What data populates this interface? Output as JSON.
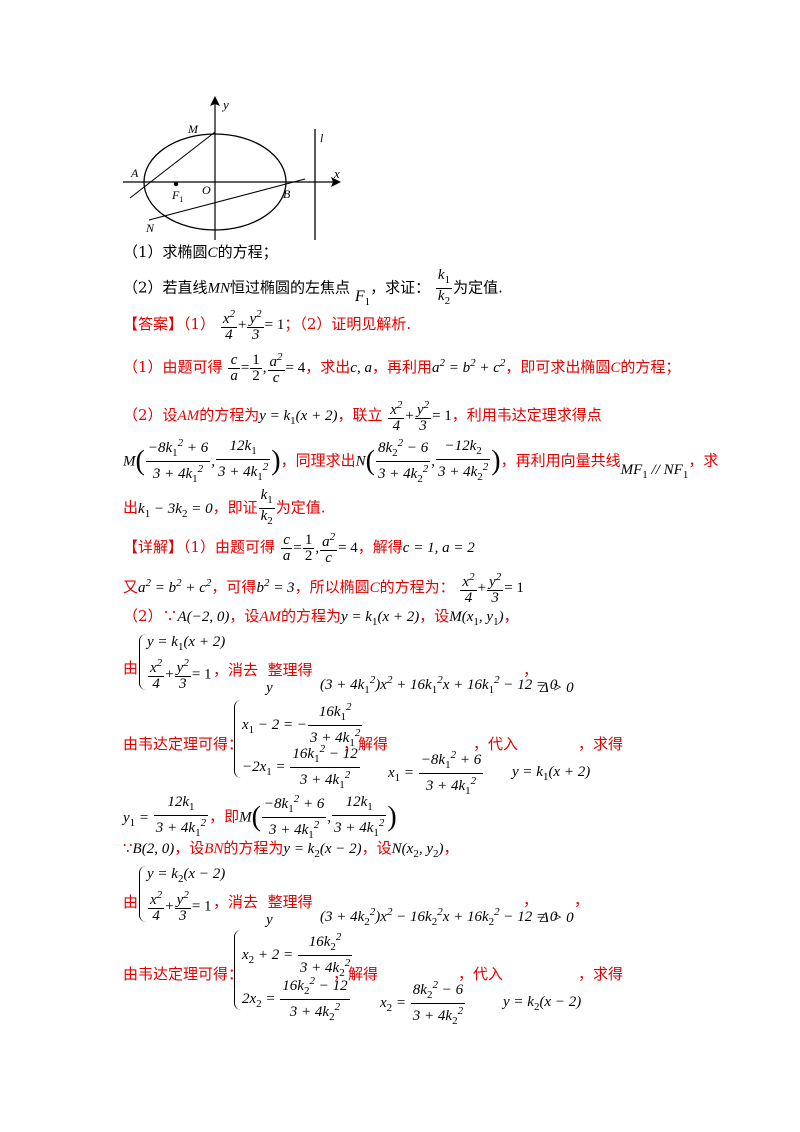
{
  "figure": {
    "labels": {
      "y": "y",
      "x": "x",
      "M": "M",
      "N": "N",
      "A": "A",
      "F1": "F",
      "F1_sub": "1",
      "O": "O",
      "B": "B",
      "l": "l"
    }
  },
  "questions": {
    "q1": "（1）求椭圆",
    "q1_c": "C",
    "q1_end": "的方程；",
    "q2": "（2）若直线",
    "q2_mn": "MN",
    "q2_mid": "恒过椭圆的左焦点",
    "q2_f1": "F",
    "q2_prove": "，求证：",
    "q2_end": "为定值."
  },
  "answer": {
    "tag": "【答案】",
    "part1": "（1）",
    "part1_end": "；（2）证明见解析.",
    "hint1_a": "（1）由题可得",
    "hint1_b": "，求出",
    "hint1_ca": "c, a",
    "hint1_c": "，再利用",
    "hint1_d": "，即可求出椭圆",
    "hint1_e": "的方程；",
    "hint2_a": "（2）设",
    "hint2_am": "AM",
    "hint2_b": "的方程为",
    "hint2_c": "，联立",
    "hint2_d": "，利用韦达定理求得点",
    "hint3_a": "，同理求出",
    "hint3_b": "，再利用向量共线",
    "hint3_c": "，求",
    "hint4_a": "出",
    "hint4_b": "，即证",
    "hint4_c": "为定值."
  },
  "detail": {
    "tag": "【详解】",
    "d1_a": "（1）由题可得",
    "d1_b": "，解得",
    "d1_sol": "c = 1, a = 2",
    "d2_a": "又",
    "d2_b": "，可得",
    "d2_c": "，所以椭圆",
    "d2_d": "的方程为：",
    "d3_a": "（2）∵",
    "d3_b": "，设",
    "d3_c": "的方程为",
    "d3_d": "，设",
    "d3_e": "，",
    "you": "由",
    "elim": "，消去",
    "elim_y": "y",
    "zhengli": "整理得",
    "comma": "，",
    "delta": "Δ > 0",
    "veda": "由韦达定理可得：",
    "jiede": "，解得",
    "dairu": "，代入",
    "qiude": "，求得",
    "ji": "，即",
    "d5_a": "∵",
    "d5_b": "，设",
    "d5_c": "的方程为",
    "d5_d": "，设",
    "d5_e": "，"
  }
}
